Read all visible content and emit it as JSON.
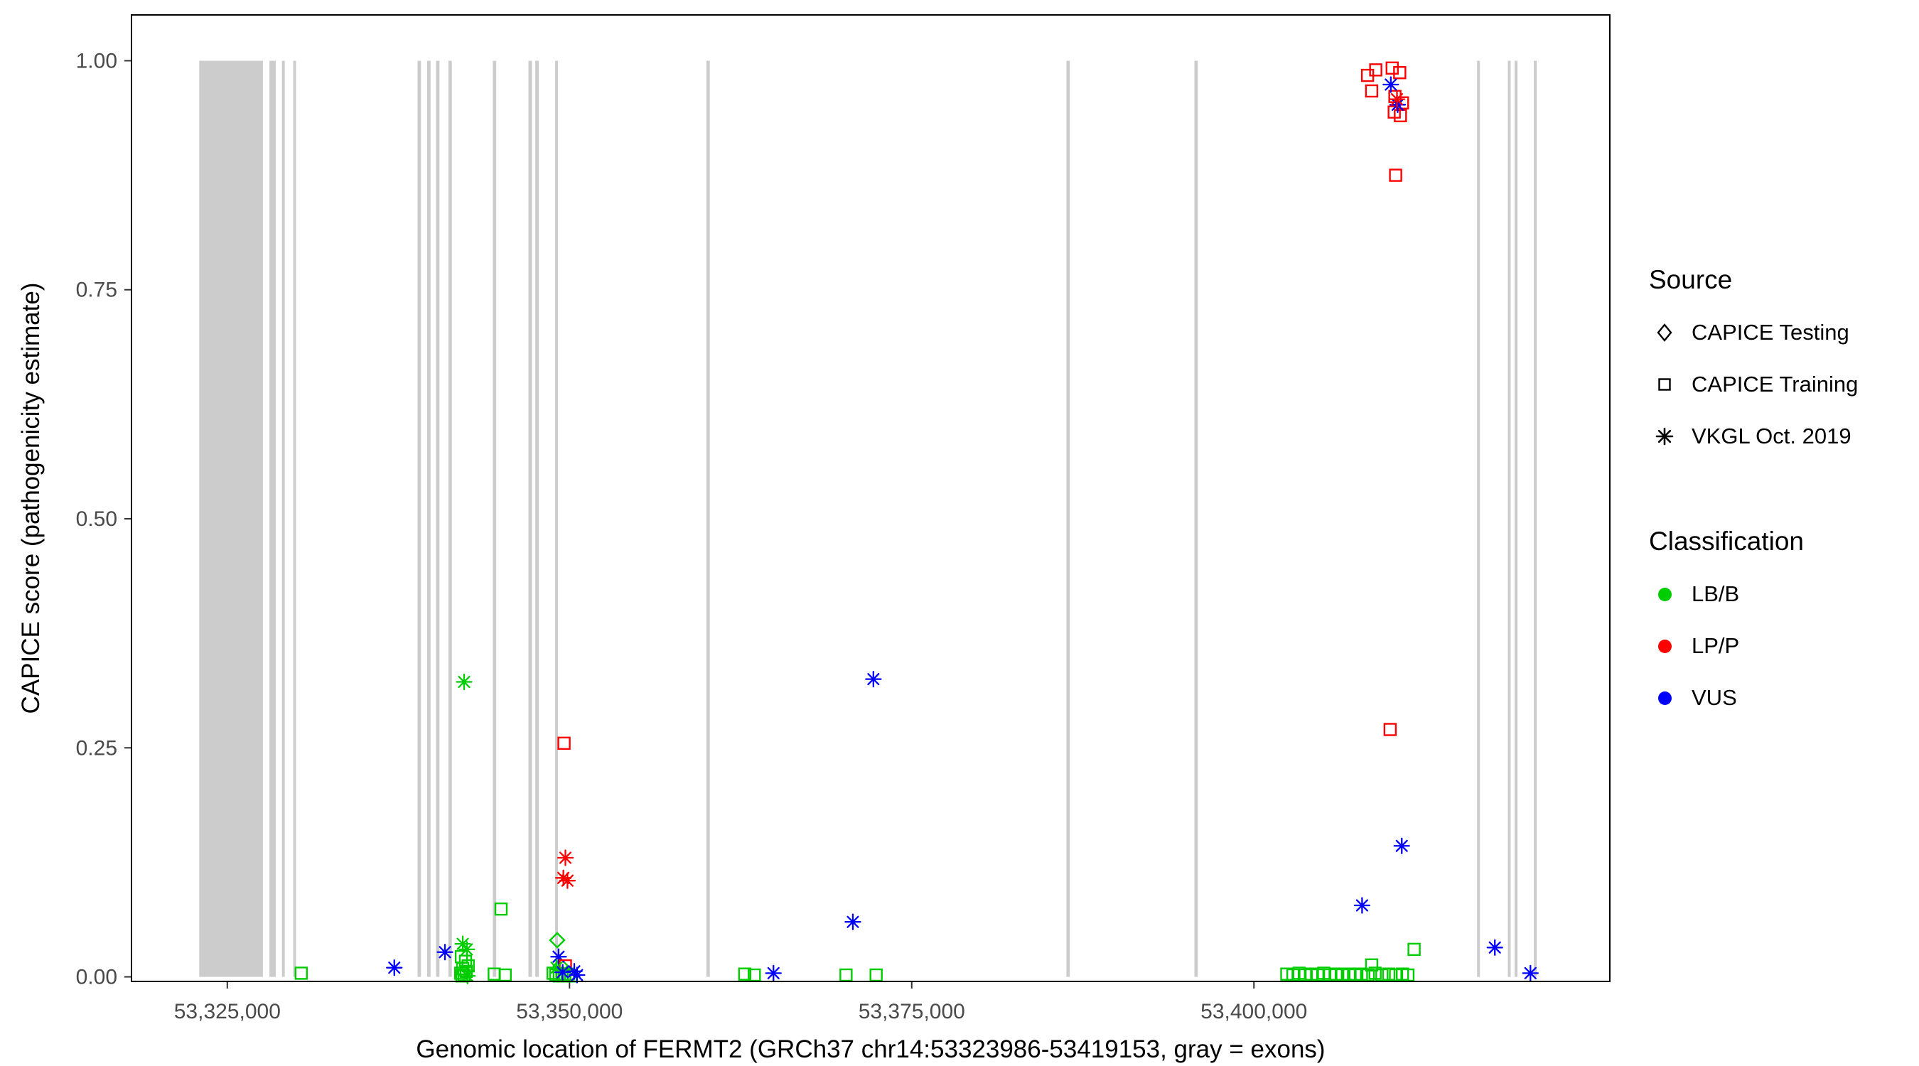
{
  "figure": {
    "background": "#FFFFFF",
    "panel_border_color": "#000000",
    "exon_color": "#CCCCCC",
    "tick_label_color": "#4a4a4a"
  },
  "axes": {
    "x": {
      "title": "Genomic location of FERMT2 (GRCh37 chr14:53323986-53419153, gray = exons)",
      "ticks": [
        {
          "value": 53325000,
          "label": "53,325,000"
        },
        {
          "value": 53350000,
          "label": "53,350,000"
        },
        {
          "value": 53375000,
          "label": "53,375,000"
        },
        {
          "value": 53400000,
          "label": "53,400,000"
        }
      ]
    },
    "y": {
      "title": "CAPICE score (pathogenicity estimate)",
      "ticks": [
        {
          "value": 0.0,
          "label": "0.00"
        },
        {
          "value": 0.25,
          "label": "0.25"
        },
        {
          "value": 0.5,
          "label": "0.50"
        },
        {
          "value": 0.75,
          "label": "0.75"
        },
        {
          "value": 1.0,
          "label": "1.00"
        }
      ]
    }
  },
  "legend": {
    "source": {
      "title": "Source",
      "items": [
        {
          "label": "CAPICE Testing",
          "shape": "diamond"
        },
        {
          "label": "CAPICE Training",
          "shape": "square"
        },
        {
          "label": "VKGL Oct. 2019",
          "shape": "asterisk"
        }
      ]
    },
    "classification": {
      "title": "Classification",
      "items": [
        {
          "label": "LB/B",
          "color": "#00CD00"
        },
        {
          "label": "LP/P",
          "color": "#FF0000"
        },
        {
          "label": "VUS",
          "color": "#0000FF"
        }
      ]
    }
  },
  "chart_data": {
    "type": "scatter",
    "title": "",
    "xlabel": "Genomic location of FERMT2 (GRCh37 chr14:53323986-53419153, gray = exons)",
    "ylabel": "CAPICE score (pathogenicity estimate)",
    "xlim": [
      53318000,
      53426000
    ],
    "ylim": [
      -0.005,
      1.05
    ],
    "legend_position": "right",
    "grid": false,
    "class_colors": {
      "LB/B": "#00CD00",
      "LP/P": "#FF0000",
      "VUS": "#0000FF"
    },
    "source_shapes": {
      "CAPICE Testing": "diamond",
      "CAPICE Training": "square",
      "VKGL Oct. 2019": "asterisk"
    },
    "exons": [
      [
        53322950,
        53327600
      ],
      [
        53328080,
        53328540
      ],
      [
        53328990,
        53329170
      ],
      [
        53329810,
        53329990
      ],
      [
        53338900,
        53339150
      ],
      [
        53339600,
        53339850
      ],
      [
        53340250,
        53340500
      ],
      [
        53341150,
        53341400
      ],
      [
        53344400,
        53344650
      ],
      [
        53347000,
        53347260
      ],
      [
        53347500,
        53347760
      ],
      [
        53348950,
        53349150
      ],
      [
        53360000,
        53360250
      ],
      [
        53386300,
        53386550
      ],
      [
        53395650,
        53395900
      ],
      [
        53416300,
        53416500
      ],
      [
        53418550,
        53418750
      ],
      [
        53419050,
        53419250
      ],
      [
        53420450,
        53420650
      ]
    ],
    "points": [
      {
        "x": 53330400,
        "y": 0.004,
        "cls": "LB/B",
        "src": "CAPICE Training"
      },
      {
        "x": 53337200,
        "y": 0.01,
        "cls": "VUS",
        "src": "VKGL Oct. 2019"
      },
      {
        "x": 53340900,
        "y": 0.027,
        "cls": "VUS",
        "src": "VKGL Oct. 2019"
      },
      {
        "x": 53342300,
        "y": 0.322,
        "cls": "LB/B",
        "src": "VKGL Oct. 2019"
      },
      {
        "x": 53342200,
        "y": 0.036,
        "cls": "LB/B",
        "src": "VKGL Oct. 2019"
      },
      {
        "x": 53342500,
        "y": 0.03,
        "cls": "LB/B",
        "src": "VKGL Oct. 2019"
      },
      {
        "x": 53342100,
        "y": 0.022,
        "cls": "LB/B",
        "src": "CAPICE Training"
      },
      {
        "x": 53342400,
        "y": 0.017,
        "cls": "LB/B",
        "src": "CAPICE Training"
      },
      {
        "x": 53342600,
        "y": 0.012,
        "cls": "LB/B",
        "src": "CAPICE Training"
      },
      {
        "x": 53342200,
        "y": 0.009,
        "cls": "LB/B",
        "src": "CAPICE Training"
      },
      {
        "x": 53342450,
        "y": 0.006,
        "cls": "LB/B",
        "src": "CAPICE Training"
      },
      {
        "x": 53342050,
        "y": 0.004,
        "cls": "LB/B",
        "src": "CAPICE Training"
      },
      {
        "x": 53342300,
        "y": 0.002,
        "cls": "LB/B",
        "src": "CAPICE Training"
      },
      {
        "x": 53342550,
        "y": 0.001,
        "cls": "LB/B",
        "src": "VKGL Oct. 2019"
      },
      {
        "x": 53342150,
        "y": 0.001,
        "cls": "LB/B",
        "src": "CAPICE Training"
      },
      {
        "x": 53345000,
        "y": 0.074,
        "cls": "LB/B",
        "src": "CAPICE Training"
      },
      {
        "x": 53344500,
        "y": 0.003,
        "cls": "LB/B",
        "src": "CAPICE Training"
      },
      {
        "x": 53345300,
        "y": 0.002,
        "cls": "LB/B",
        "src": "CAPICE Training"
      },
      {
        "x": 53349600,
        "y": 0.255,
        "cls": "LP/P",
        "src": "CAPICE Training"
      },
      {
        "x": 53349700,
        "y": 0.13,
        "cls": "LP/P",
        "src": "VKGL Oct. 2019"
      },
      {
        "x": 53349550,
        "y": 0.108,
        "cls": "LP/P",
        "src": "VKGL Oct. 2019"
      },
      {
        "x": 53349850,
        "y": 0.105,
        "cls": "LP/P",
        "src": "VKGL Oct. 2019"
      },
      {
        "x": 53349100,
        "y": 0.04,
        "cls": "LB/B",
        "src": "CAPICE Testing"
      },
      {
        "x": 53349350,
        "y": 0.012,
        "cls": "LB/B",
        "src": "CAPICE Testing"
      },
      {
        "x": 53349200,
        "y": 0.022,
        "cls": "VUS",
        "src": "VKGL Oct. 2019"
      },
      {
        "x": 53349700,
        "y": 0.012,
        "cls": "LP/P",
        "src": "CAPICE Training"
      },
      {
        "x": 53349050,
        "y": 0.01,
        "cls": "LB/B",
        "src": "VKGL Oct. 2019"
      },
      {
        "x": 53348800,
        "y": 0.004,
        "cls": "LB/B",
        "src": "CAPICE Training"
      },
      {
        "x": 53349000,
        "y": 0.002,
        "cls": "LB/B",
        "src": "CAPICE Training"
      },
      {
        "x": 53349250,
        "y": 0.001,
        "cls": "LB/B",
        "src": "CAPICE Training"
      },
      {
        "x": 53349450,
        "y": 0.003,
        "cls": "LB/B",
        "src": "CAPICE Training"
      },
      {
        "x": 53349650,
        "y": 0.001,
        "cls": "LB/B",
        "src": "CAPICE Training"
      },
      {
        "x": 53349900,
        "y": 0.003,
        "cls": "LB/B",
        "src": "CAPICE Training"
      },
      {
        "x": 53350100,
        "y": 0.001,
        "cls": "LB/B",
        "src": "CAPICE Training"
      },
      {
        "x": 53349500,
        "y": 0.005,
        "cls": "VUS",
        "src": "VKGL Oct. 2019"
      },
      {
        "x": 53350350,
        "y": 0.006,
        "cls": "VUS",
        "src": "VKGL Oct. 2019"
      },
      {
        "x": 53350550,
        "y": 0.002,
        "cls": "VUS",
        "src": "VKGL Oct. 2019"
      },
      {
        "x": 53362800,
        "y": 0.003,
        "cls": "LB/B",
        "src": "CAPICE Training"
      },
      {
        "x": 53363500,
        "y": 0.002,
        "cls": "LB/B",
        "src": "CAPICE Training"
      },
      {
        "x": 53364900,
        "y": 0.004,
        "cls": "VUS",
        "src": "VKGL Oct. 2019"
      },
      {
        "x": 53370200,
        "y": 0.002,
        "cls": "LB/B",
        "src": "CAPICE Training"
      },
      {
        "x": 53370700,
        "y": 0.06,
        "cls": "VUS",
        "src": "VKGL Oct. 2019"
      },
      {
        "x": 53372200,
        "y": 0.325,
        "cls": "VUS",
        "src": "VKGL Oct. 2019"
      },
      {
        "x": 53372400,
        "y": 0.002,
        "cls": "LB/B",
        "src": "CAPICE Training"
      },
      {
        "x": 53402400,
        "y": 0.003,
        "cls": "LB/B",
        "src": "CAPICE Training"
      },
      {
        "x": 53402850,
        "y": 0.002,
        "cls": "LB/B",
        "src": "CAPICE Training"
      },
      {
        "x": 53403300,
        "y": 0.004,
        "cls": "LB/B",
        "src": "CAPICE Training"
      },
      {
        "x": 53403750,
        "y": 0.002,
        "cls": "LB/B",
        "src": "CAPICE Training"
      },
      {
        "x": 53404200,
        "y": 0.003,
        "cls": "LB/B",
        "src": "CAPICE Training"
      },
      {
        "x": 53404650,
        "y": 0.002,
        "cls": "LB/B",
        "src": "CAPICE Training"
      },
      {
        "x": 53405100,
        "y": 0.004,
        "cls": "LB/B",
        "src": "CAPICE Training"
      },
      {
        "x": 53405550,
        "y": 0.002,
        "cls": "LB/B",
        "src": "CAPICE Training"
      },
      {
        "x": 53406000,
        "y": 0.003,
        "cls": "LB/B",
        "src": "CAPICE Training"
      },
      {
        "x": 53406450,
        "y": 0.002,
        "cls": "LB/B",
        "src": "CAPICE Training"
      },
      {
        "x": 53406950,
        "y": 0.003,
        "cls": "LB/B",
        "src": "CAPICE Training"
      },
      {
        "x": 53407400,
        "y": 0.002,
        "cls": "LB/B",
        "src": "CAPICE Training"
      },
      {
        "x": 53407850,
        "y": 0.003,
        "cls": "LB/B",
        "src": "CAPICE Training"
      },
      {
        "x": 53408350,
        "y": 0.002,
        "cls": "LB/B",
        "src": "CAPICE Training"
      },
      {
        "x": 53408600,
        "y": 0.013,
        "cls": "LB/B",
        "src": "CAPICE Training"
      },
      {
        "x": 53408850,
        "y": 0.004,
        "cls": "LB/B",
        "src": "CAPICE Training"
      },
      {
        "x": 53409350,
        "y": 0.002,
        "cls": "LB/B",
        "src": "CAPICE Training"
      },
      {
        "x": 53409850,
        "y": 0.003,
        "cls": "LB/B",
        "src": "CAPICE Training"
      },
      {
        "x": 53410350,
        "y": 0.002,
        "cls": "LB/B",
        "src": "CAPICE Training"
      },
      {
        "x": 53410850,
        "y": 0.003,
        "cls": "LB/B",
        "src": "CAPICE Training"
      },
      {
        "x": 53411250,
        "y": 0.002,
        "cls": "LB/B",
        "src": "CAPICE Training"
      },
      {
        "x": 53411700,
        "y": 0.03,
        "cls": "LB/B",
        "src": "CAPICE Training"
      },
      {
        "x": 53407900,
        "y": 0.078,
        "cls": "VUS",
        "src": "VKGL Oct. 2019"
      },
      {
        "x": 53410800,
        "y": 0.143,
        "cls": "VUS",
        "src": "VKGL Oct. 2019"
      },
      {
        "x": 53409950,
        "y": 0.27,
        "cls": "LP/P",
        "src": "CAPICE Training"
      },
      {
        "x": 53410350,
        "y": 0.875,
        "cls": "LP/P",
        "src": "CAPICE Training"
      },
      {
        "x": 53408300,
        "y": 0.984,
        "cls": "LP/P",
        "src": "CAPICE Training"
      },
      {
        "x": 53408900,
        "y": 0.99,
        "cls": "LP/P",
        "src": "CAPICE Training"
      },
      {
        "x": 53410100,
        "y": 0.992,
        "cls": "LP/P",
        "src": "CAPICE Training"
      },
      {
        "x": 53410650,
        "y": 0.987,
        "cls": "LP/P",
        "src": "CAPICE Training"
      },
      {
        "x": 53408600,
        "y": 0.967,
        "cls": "LP/P",
        "src": "CAPICE Training"
      },
      {
        "x": 53410300,
        "y": 0.961,
        "cls": "LP/P",
        "src": "CAPICE Training"
      },
      {
        "x": 53410850,
        "y": 0.954,
        "cls": "LP/P",
        "src": "CAPICE Training"
      },
      {
        "x": 53410250,
        "y": 0.944,
        "cls": "LP/P",
        "src": "CAPICE Training"
      },
      {
        "x": 53410700,
        "y": 0.94,
        "cls": "LP/P",
        "src": "CAPICE Training"
      },
      {
        "x": 53410000,
        "y": 0.974,
        "cls": "VUS",
        "src": "VKGL Oct. 2019"
      },
      {
        "x": 53410500,
        "y": 0.952,
        "cls": "VUS",
        "src": "VKGL Oct. 2019"
      },
      {
        "x": 53410450,
        "y": 0.958,
        "cls": "LP/P",
        "src": "VKGL Oct. 2019"
      },
      {
        "x": 53417600,
        "y": 0.032,
        "cls": "VUS",
        "src": "VKGL Oct. 2019"
      },
      {
        "x": 53420200,
        "y": 0.004,
        "cls": "VUS",
        "src": "VKGL Oct. 2019"
      }
    ]
  }
}
